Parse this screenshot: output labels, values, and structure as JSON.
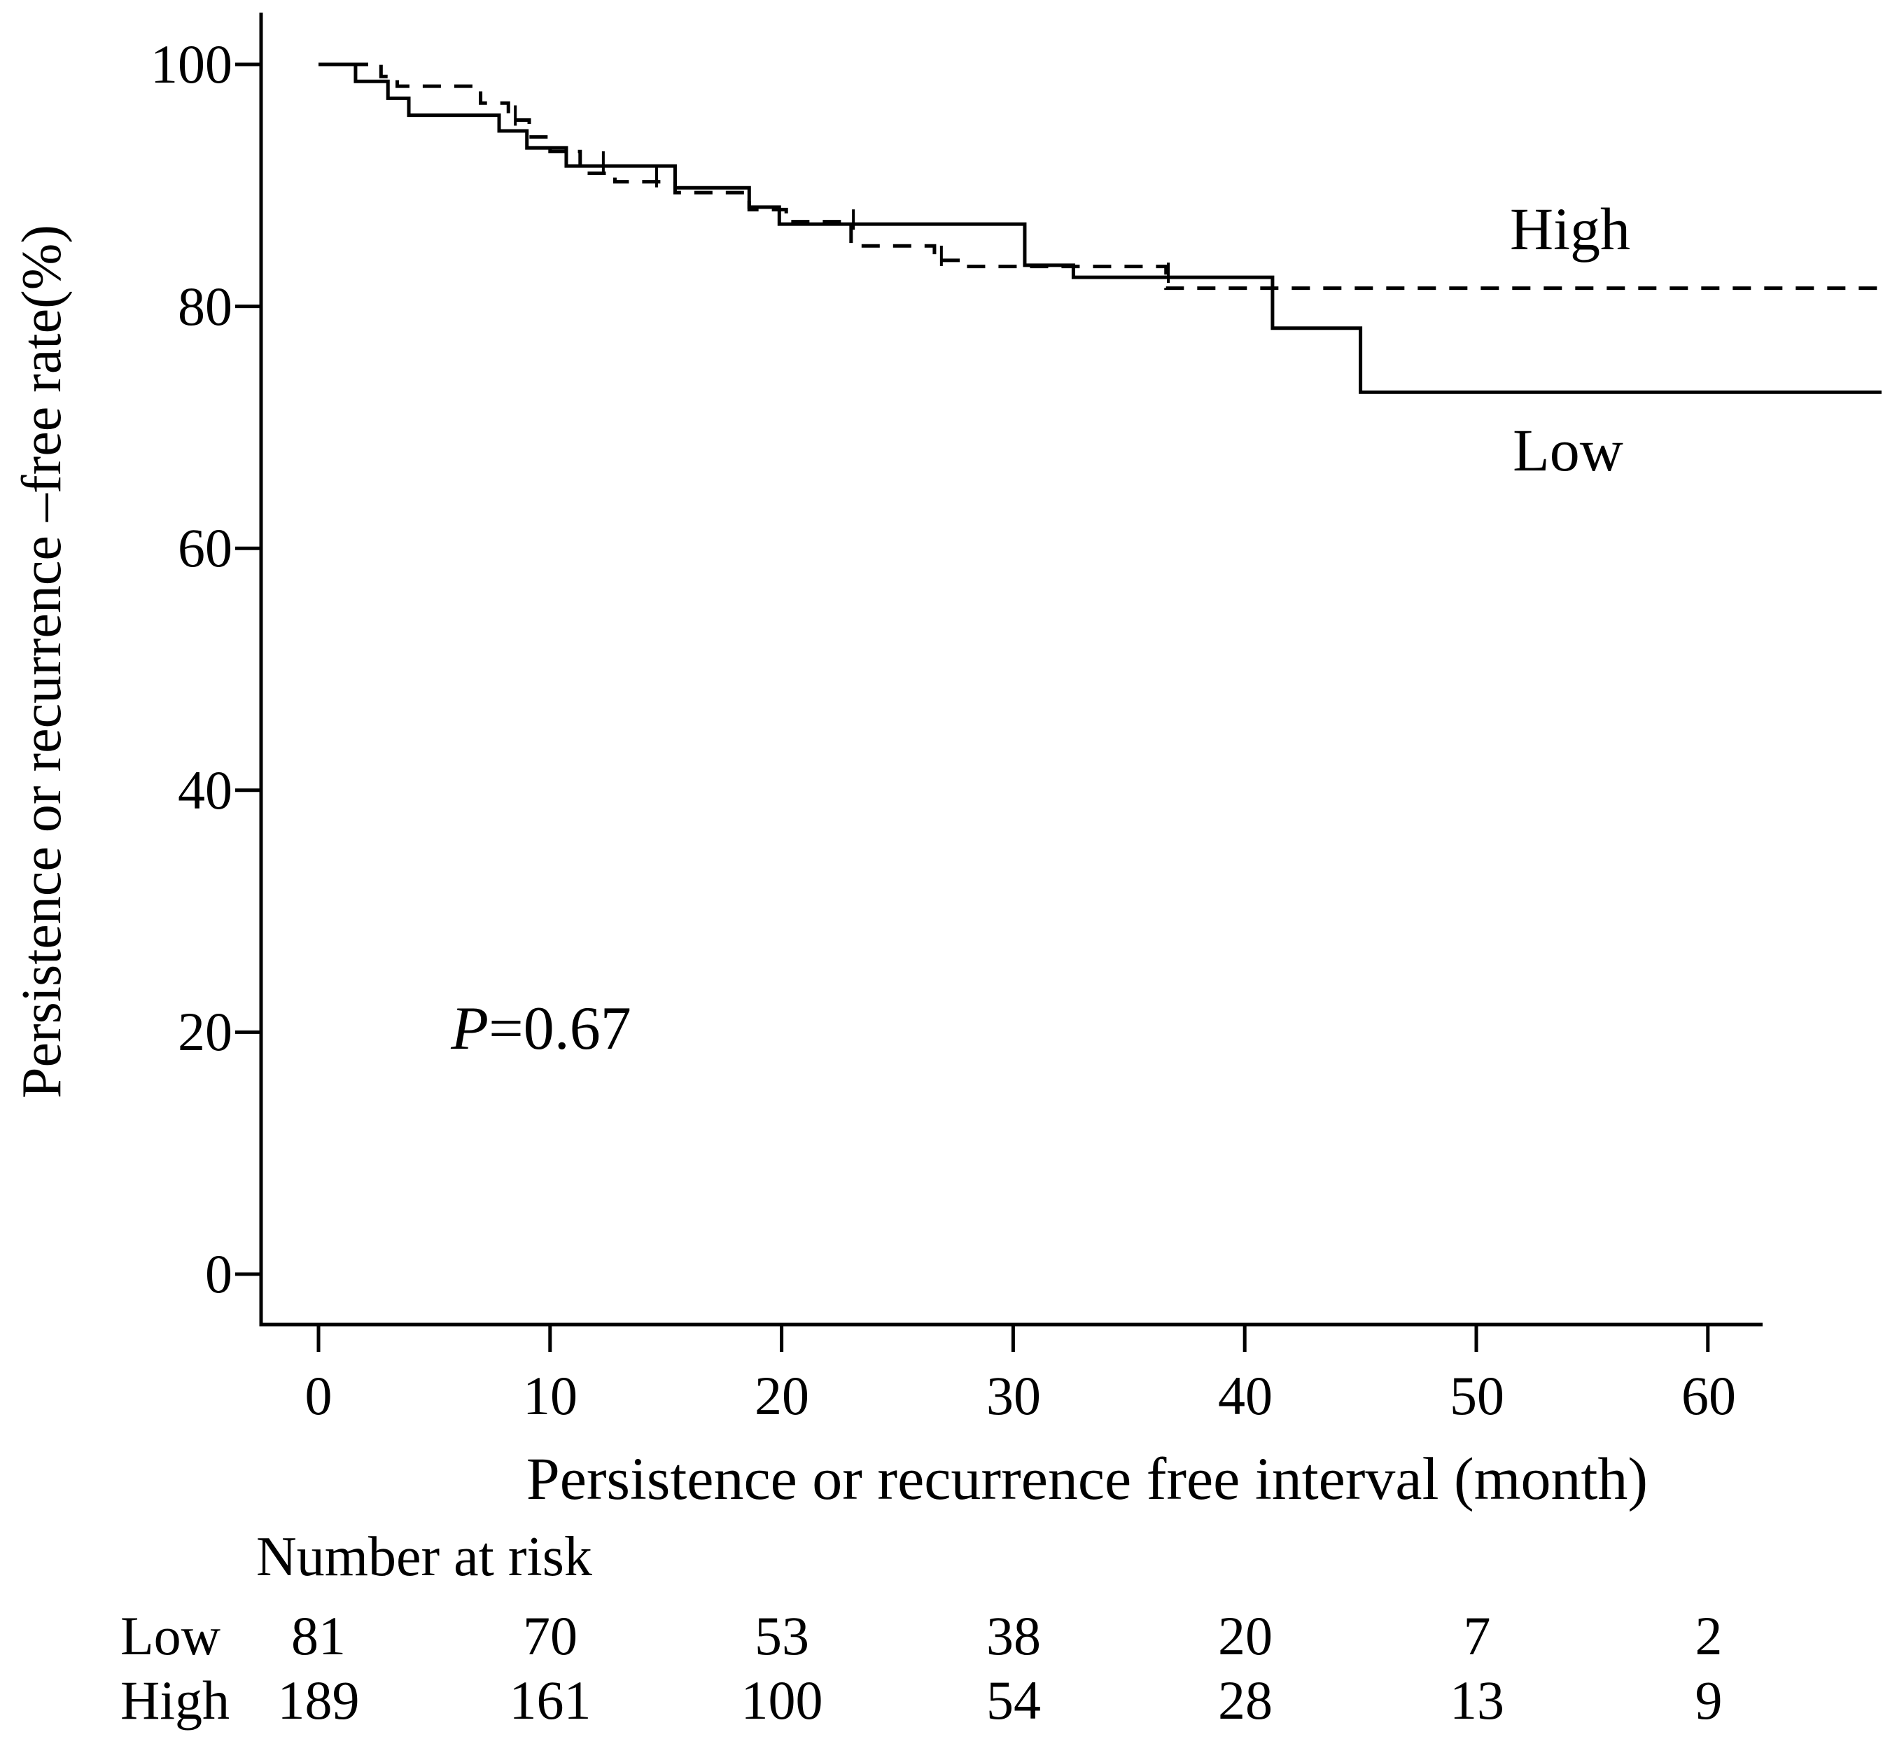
{
  "figure": {
    "p_value": {
      "italic": "P",
      "rest": "=0.67"
    },
    "curve_labels": {
      "high": "High",
      "low": "Low"
    },
    "y_axis": {
      "title": "Persistence or recurrence –free rate(%)",
      "tick_labels": [
        "100",
        "80",
        "60",
        "40",
        "20",
        "0"
      ]
    },
    "x_axis": {
      "title": "Persistence or recurrence free interval (month)",
      "tick_labels": [
        "0",
        "10",
        "20",
        "30",
        "40",
        "50",
        "60"
      ]
    },
    "number_at_risk": {
      "title": "Number at risk",
      "rows": [
        {
          "label": "Low",
          "values": [
            "81",
            "70",
            "53",
            "38",
            "20",
            "7",
            "2"
          ]
        },
        {
          "label": "High",
          "values": [
            "189",
            "161",
            "100",
            "54",
            "28",
            "13",
            "9"
          ]
        }
      ]
    }
  },
  "chart_data": {
    "type": "line",
    "subtype": "kaplan-meier-step",
    "title": "",
    "xlabel": "Persistence or recurrence free interval (month)",
    "ylabel": "Persistence or recurrence –free rate(%)",
    "xlim": [
      0,
      60
    ],
    "ylim": [
      0,
      100
    ],
    "x_ticks": [
      0,
      10,
      20,
      30,
      40,
      50,
      60
    ],
    "y_ticks": [
      0,
      20,
      40,
      60,
      80,
      100
    ],
    "grid": false,
    "annotation": "P=0.67",
    "legend_position": "inline-right-of-curves",
    "line_color": "#000000",
    "series": [
      {
        "name": "High",
        "line_style": "dashed",
        "color": "#000000",
        "steps": [
          [
            0,
            100
          ],
          [
            2.7,
            99.0
          ],
          [
            3.4,
            98.2
          ],
          [
            7.0,
            96.8
          ],
          [
            8.2,
            95.4
          ],
          [
            9.1,
            94.0
          ],
          [
            10.0,
            92.8
          ],
          [
            11.3,
            91.0
          ],
          [
            12.8,
            90.3
          ],
          [
            15.4,
            89.4
          ],
          [
            18.6,
            88.0
          ],
          [
            20.2,
            87.0
          ],
          [
            23.0,
            85.0
          ],
          [
            26.6,
            83.8
          ],
          [
            27.8,
            83.3
          ],
          [
            36.6,
            81.5
          ]
        ],
        "end_month": 67.5,
        "final_rate_pct": 81.5,
        "censor_months": [
          8.5,
          14.6,
          26.9
        ],
        "number_at_risk": [
          189,
          161,
          100,
          54,
          28,
          13,
          9
        ]
      },
      {
        "name": "Low",
        "line_style": "solid",
        "color": "#000000",
        "steps": [
          [
            0,
            100
          ],
          [
            1.6,
            98.6
          ],
          [
            3.0,
            97.2
          ],
          [
            3.9,
            95.8
          ],
          [
            7.8,
            94.5
          ],
          [
            9.0,
            93.1
          ],
          [
            10.7,
            91.6
          ],
          [
            15.4,
            89.8
          ],
          [
            18.6,
            88.2
          ],
          [
            19.9,
            86.8
          ],
          [
            30.5,
            83.4
          ],
          [
            32.6,
            82.4
          ],
          [
            41.2,
            78.2
          ],
          [
            45.0,
            72.9
          ]
        ],
        "end_month": 67.5,
        "final_rate_pct": 72.9,
        "censor_months": [
          12.3,
          23.1,
          36.7
        ],
        "number_at_risk": [
          81,
          70,
          53,
          38,
          20,
          7,
          2
        ]
      }
    ]
  }
}
